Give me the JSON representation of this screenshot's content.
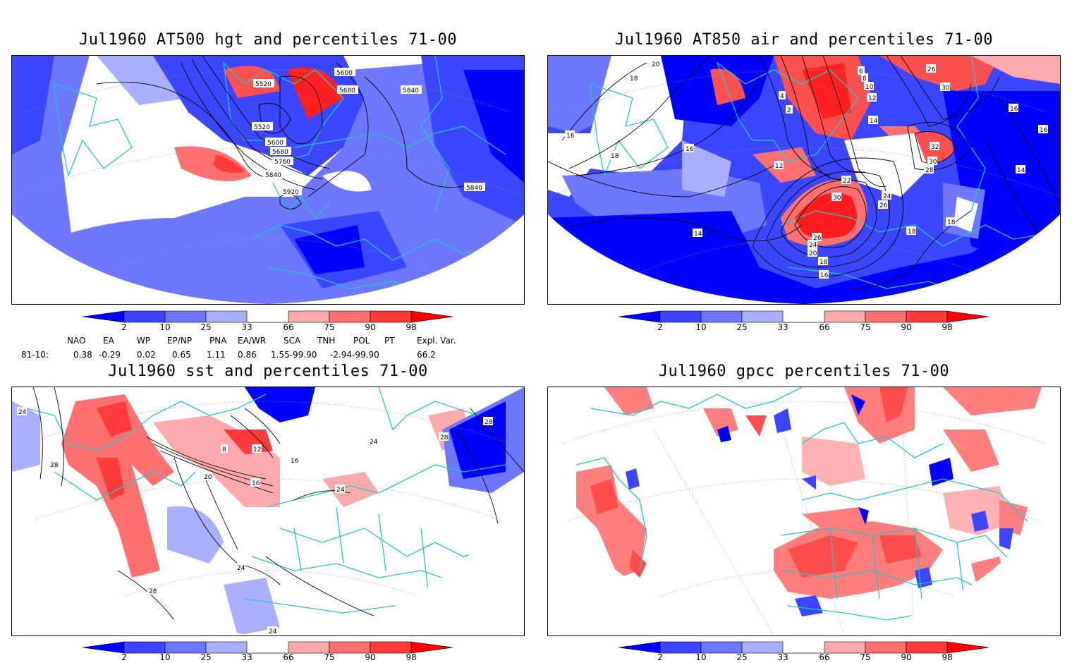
{
  "panels": [
    {
      "id": "hgt",
      "title": "Jul1960 AT500 hgt and percentiles 71-00",
      "contour_labels": [
        "5600",
        "5680",
        "5520",
        "5840",
        "5520",
        "5600",
        "5680",
        "5760",
        "5840",
        "5920",
        "5840"
      ]
    },
    {
      "id": "air",
      "title": "Jul1960 AT850 air and percentiles 71-00",
      "contour_labels": [
        "20",
        "18",
        "16",
        "18",
        "16",
        "12",
        "14",
        "4",
        "2",
        "6",
        "8",
        "10",
        "12",
        "14",
        "26",
        "30",
        "32",
        "30",
        "28",
        "22",
        "24",
        "26",
        "30",
        "26",
        "24",
        "20",
        "18",
        "16",
        "18",
        "16",
        "14",
        "18",
        "16"
      ]
    },
    {
      "id": "sst",
      "title": "Jul1960 sst and percentiles 71-00",
      "contour_labels": [
        "24",
        "28",
        "20",
        "16",
        "16",
        "24",
        "24",
        "28",
        "8",
        "12",
        "28",
        "24",
        "24",
        "28"
      ]
    },
    {
      "id": "gpcc",
      "title": "Jul1960 gpcc percentiles 71-00",
      "contour_labels": []
    }
  ],
  "colorbar": {
    "ticks": [
      "2",
      "10",
      "25",
      "33",
      "66",
      "75",
      "90",
      "98"
    ],
    "colors": [
      "#0000ff",
      "#3c46ff",
      "#6e78ff",
      "#aab0ff",
      "#ffaaaa",
      "#ff7070",
      "#ff3a3a",
      "#ff0000"
    ]
  },
  "indices": {
    "headers": [
      "NAO",
      "EA",
      "WP",
      "EP/NP",
      "PNA",
      "EA/WR",
      "SCA",
      "TNH",
      "POL",
      "PT",
      "Expl. Var."
    ],
    "row_label": "81-10:",
    "values": [
      "0.38",
      "-0.29",
      "0.02",
      "0.65",
      "1.11",
      "0.86",
      "1.55-99.90",
      "-2.94-99.90",
      "66.2"
    ]
  },
  "colors": {
    "coast": "#20c8c8",
    "contour": "#000000",
    "grid": "#999999"
  }
}
